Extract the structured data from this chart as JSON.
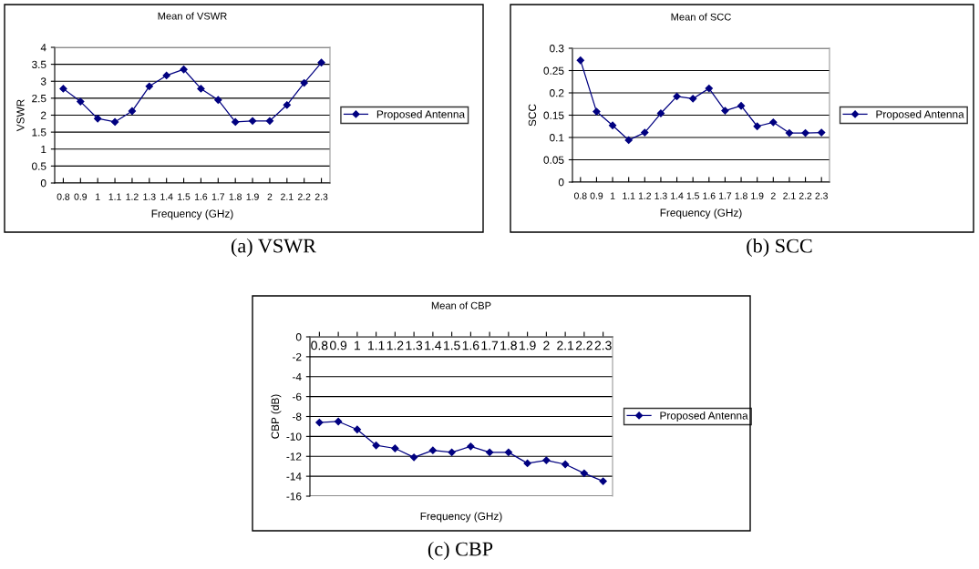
{
  "chart_data": [
    {
      "type": "line",
      "title": "Mean of VSWR",
      "xlabel": "Frequency (GHz)",
      "ylabel": "VSWR",
      "categories": [
        "0.8",
        "0.9",
        "1",
        "1.1",
        "1.2",
        "1.3",
        "1.4",
        "1.5",
        "1.6",
        "1.7",
        "1.8",
        "1.9",
        "2",
        "2.1",
        "2.2",
        "2.3"
      ],
      "series": [
        {
          "name": "Proposed Antenna",
          "color": "#000080",
          "values": [
            2.78,
            2.4,
            1.9,
            1.8,
            2.12,
            2.85,
            3.17,
            3.35,
            2.78,
            2.45,
            1.8,
            1.83,
            1.83,
            2.3,
            2.95,
            3.55
          ]
        }
      ],
      "ylim": [
        0,
        4
      ],
      "yticks": [
        0,
        0.5,
        1,
        1.5,
        2,
        2.5,
        3,
        3.5,
        4
      ],
      "grid": "y",
      "legend": "right",
      "marker": "diamond",
      "annotations": [
        "(a) VSWR"
      ]
    },
    {
      "type": "line",
      "title": "Mean of SCC",
      "xlabel": "Frequency (GHz)",
      "ylabel": "SCC",
      "categories": [
        "0.8",
        "0.9",
        "1",
        "1.1",
        "1.2",
        "1.3",
        "1.4",
        "1.5",
        "1.6",
        "1.7",
        "1.8",
        "1.9",
        "2",
        "2.1",
        "2.2",
        "2.3"
      ],
      "series": [
        {
          "name": "Proposed Antenna",
          "color": "#000080",
          "values": [
            0.273,
            0.158,
            0.127,
            0.094,
            0.111,
            0.154,
            0.192,
            0.187,
            0.21,
            0.16,
            0.171,
            0.125,
            0.134,
            0.11,
            0.11,
            0.111
          ]
        }
      ],
      "ylim": [
        0,
        0.3
      ],
      "yticks": [
        0,
        0.05,
        0.1,
        0.15,
        0.2,
        0.25,
        0.3
      ],
      "grid": "y",
      "legend": "right",
      "marker": "diamond",
      "annotations": [
        "(b) SCC"
      ]
    },
    {
      "type": "line",
      "title": "Mean of CBP",
      "xlabel": "Frequency (GHz)",
      "ylabel": "CBP (dB)",
      "categories": [
        "0.8",
        "0.9",
        "1",
        "1.1",
        "1.2",
        "1.3",
        "1.4",
        "1.5",
        "1.6",
        "1.7",
        "1.8",
        "1.9",
        "2",
        "2.1",
        "2.2",
        "2.3"
      ],
      "series": [
        {
          "name": "Proposed Antenna",
          "color": "#000080",
          "values": [
            -8.6,
            -8.5,
            -9.3,
            -10.9,
            -11.2,
            -12.1,
            -11.4,
            -11.6,
            -11.0,
            -11.6,
            -11.6,
            -12.7,
            -12.4,
            -12.8,
            -13.7,
            -14.5
          ]
        }
      ],
      "ylim": [
        -16,
        0
      ],
      "yticks": [
        -16,
        -14,
        -12,
        -10,
        -8,
        -6,
        -4,
        -2,
        0
      ],
      "grid": "y",
      "legend": "right",
      "marker": "diamond",
      "annotations": [
        "(c) CBP"
      ]
    }
  ]
}
